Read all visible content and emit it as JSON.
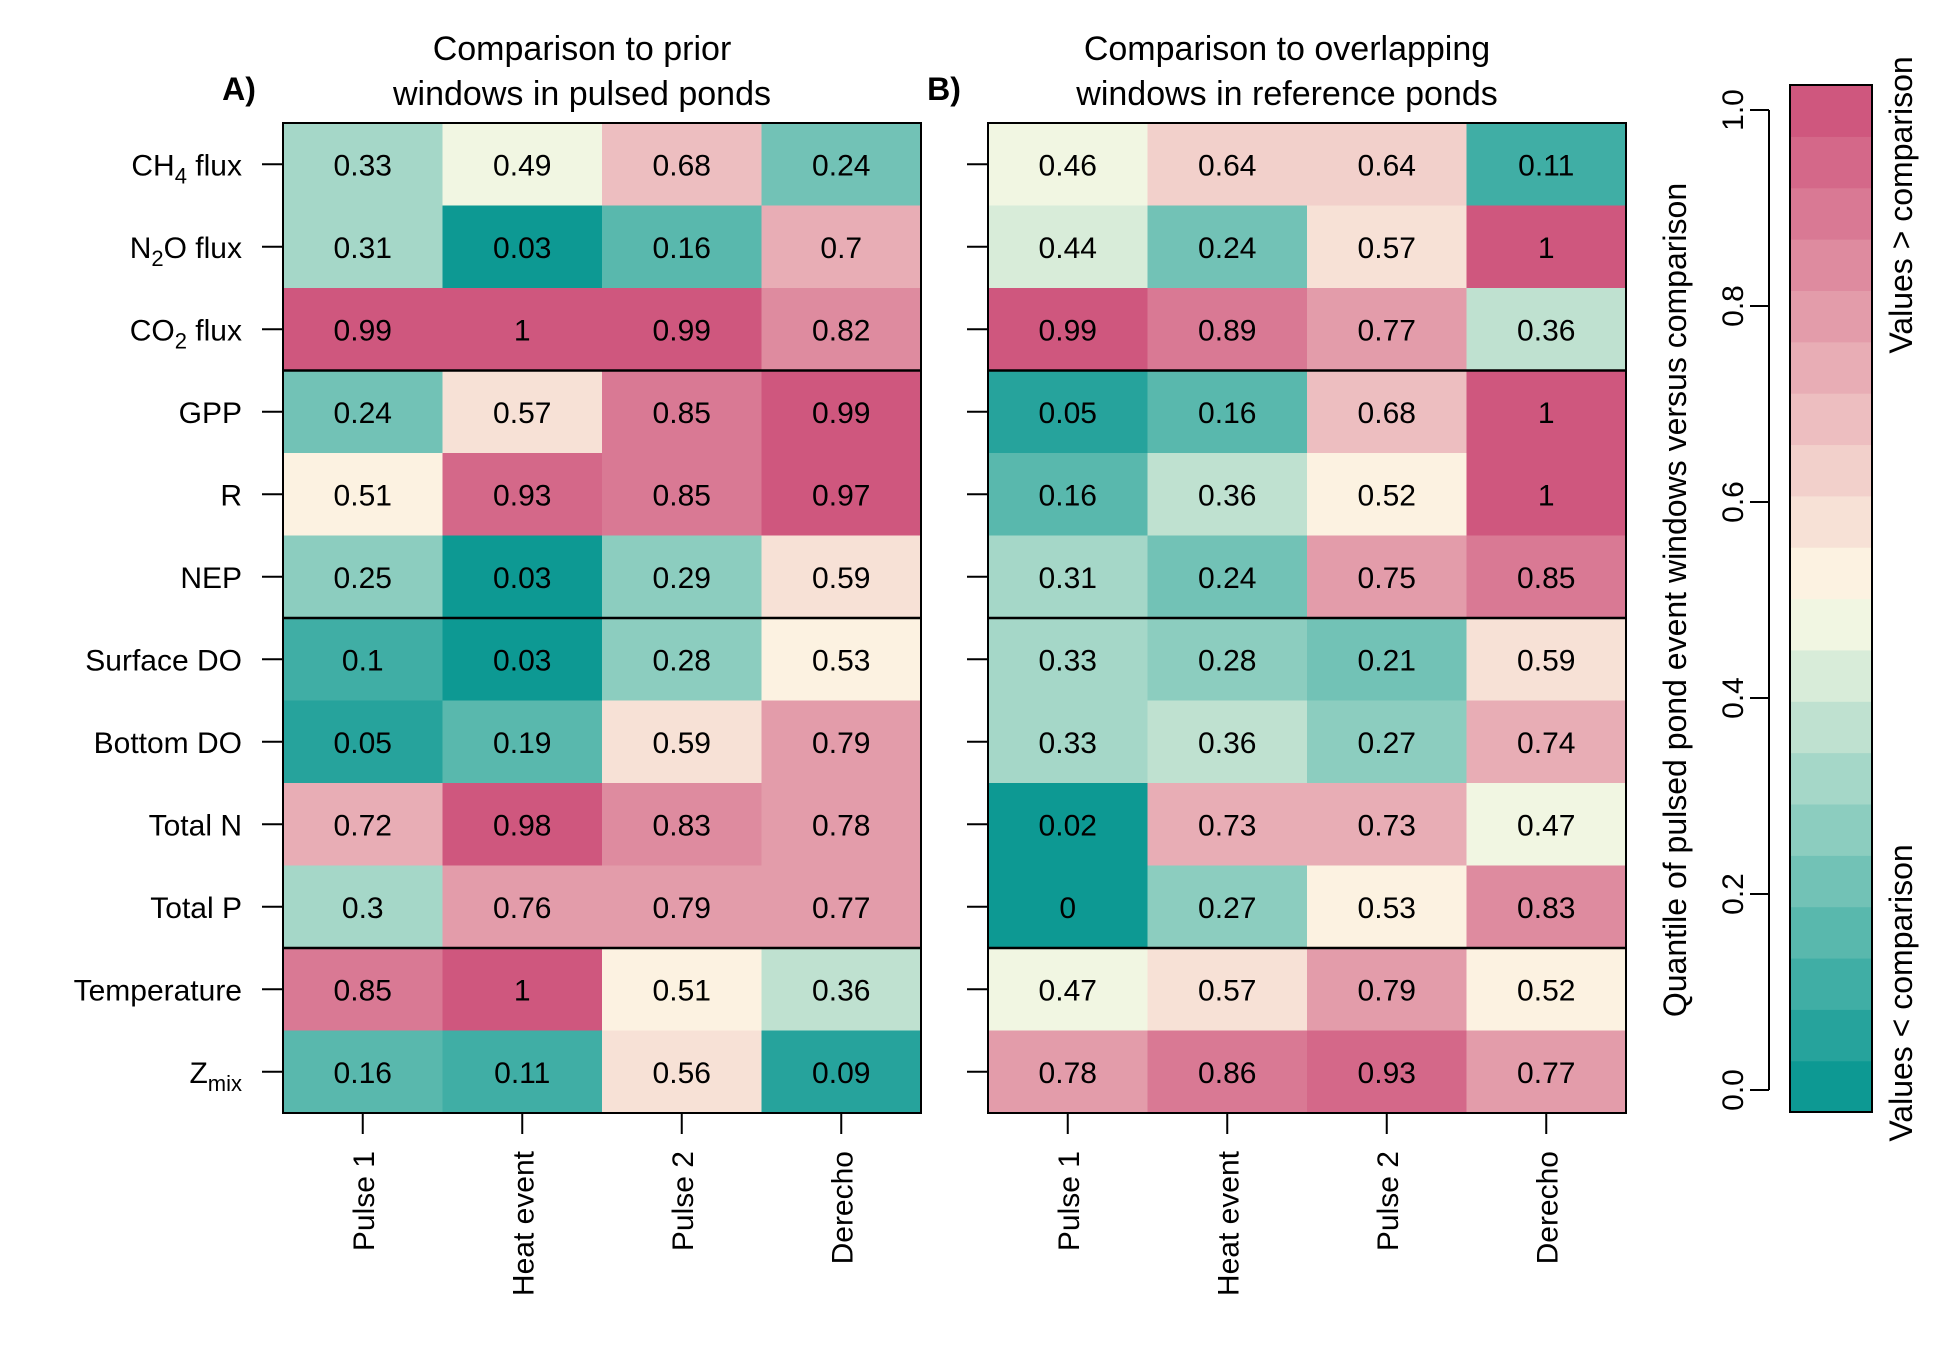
{
  "colors": {
    "low": "#00948f",
    "mid": "#fefbe6",
    "high": "#cc4e78"
  },
  "colorbar": {
    "axis_label": "Quantile of pulsed pond event windows versus comparison",
    "ticks": [
      "0.0",
      "0.2",
      "0.4",
      "0.6",
      "0.8",
      "1.0"
    ],
    "high_label": "Values > comparison",
    "low_label": "Values < comparison"
  },
  "chart_data": {
    "type": "heatmap",
    "row_labels": [
      {
        "base": "CH",
        "sub": "4",
        "rest": " flux"
      },
      {
        "base": "N",
        "sub": "2",
        "rest": "O flux"
      },
      {
        "base": "CO",
        "sub": "2",
        "rest": " flux"
      },
      {
        "base": "GPP",
        "sub": "",
        "rest": ""
      },
      {
        "base": "R",
        "sub": "",
        "rest": ""
      },
      {
        "base": "NEP",
        "sub": "",
        "rest": ""
      },
      {
        "base": "Surface DO",
        "sub": "",
        "rest": ""
      },
      {
        "base": "Bottom DO",
        "sub": "",
        "rest": ""
      },
      {
        "base": "Total N",
        "sub": "",
        "rest": ""
      },
      {
        "base": "Total P",
        "sub": "",
        "rest": ""
      },
      {
        "base": "Temperature",
        "sub": "",
        "rest": ""
      },
      {
        "base": "Z",
        "sub": "mix",
        "rest": ""
      }
    ],
    "columns": [
      "Pulse 1",
      "Heat event",
      "Pulse 2",
      "Derecho"
    ],
    "group_breaks_after_rows": [
      3,
      6,
      10
    ],
    "value_range": [
      0,
      1
    ],
    "panels": [
      {
        "letter": "A)",
        "title_line1": "Comparison to prior",
        "title_line2": "windows in pulsed ponds",
        "values": [
          [
            "0.33",
            "0.49",
            "0.68",
            "0.24"
          ],
          [
            "0.31",
            "0.03",
            "0.16",
            "0.7"
          ],
          [
            "0.99",
            "1",
            "0.99",
            "0.82"
          ],
          [
            "0.24",
            "0.57",
            "0.85",
            "0.99"
          ],
          [
            "0.51",
            "0.93",
            "0.85",
            "0.97"
          ],
          [
            "0.25",
            "0.03",
            "0.29",
            "0.59"
          ],
          [
            "0.1",
            "0.03",
            "0.28",
            "0.53"
          ],
          [
            "0.05",
            "0.19",
            "0.59",
            "0.79"
          ],
          [
            "0.72",
            "0.98",
            "0.83",
            "0.78"
          ],
          [
            "0.3",
            "0.76",
            "0.79",
            "0.77"
          ],
          [
            "0.85",
            "1",
            "0.51",
            "0.36"
          ],
          [
            "0.16",
            "0.11",
            "0.56",
            "0.09"
          ]
        ]
      },
      {
        "letter": "B)",
        "title_line1": "Comparison to overlapping",
        "title_line2": "windows in reference ponds",
        "values": [
          [
            "0.46",
            "0.64",
            "0.64",
            "0.11"
          ],
          [
            "0.44",
            "0.24",
            "0.57",
            "1"
          ],
          [
            "0.99",
            "0.89",
            "0.77",
            "0.36"
          ],
          [
            "0.05",
            "0.16",
            "0.68",
            "1"
          ],
          [
            "0.16",
            "0.36",
            "0.52",
            "1"
          ],
          [
            "0.31",
            "0.24",
            "0.75",
            "0.85"
          ],
          [
            "0.33",
            "0.28",
            "0.21",
            "0.59"
          ],
          [
            "0.33",
            "0.36",
            "0.27",
            "0.74"
          ],
          [
            "0.02",
            "0.73",
            "0.73",
            "0.47"
          ],
          [
            "0",
            "0.27",
            "0.53",
            "0.83"
          ],
          [
            "0.47",
            "0.57",
            "0.79",
            "0.52"
          ],
          [
            "0.78",
            "0.86",
            "0.93",
            "0.77"
          ]
        ]
      }
    ]
  }
}
